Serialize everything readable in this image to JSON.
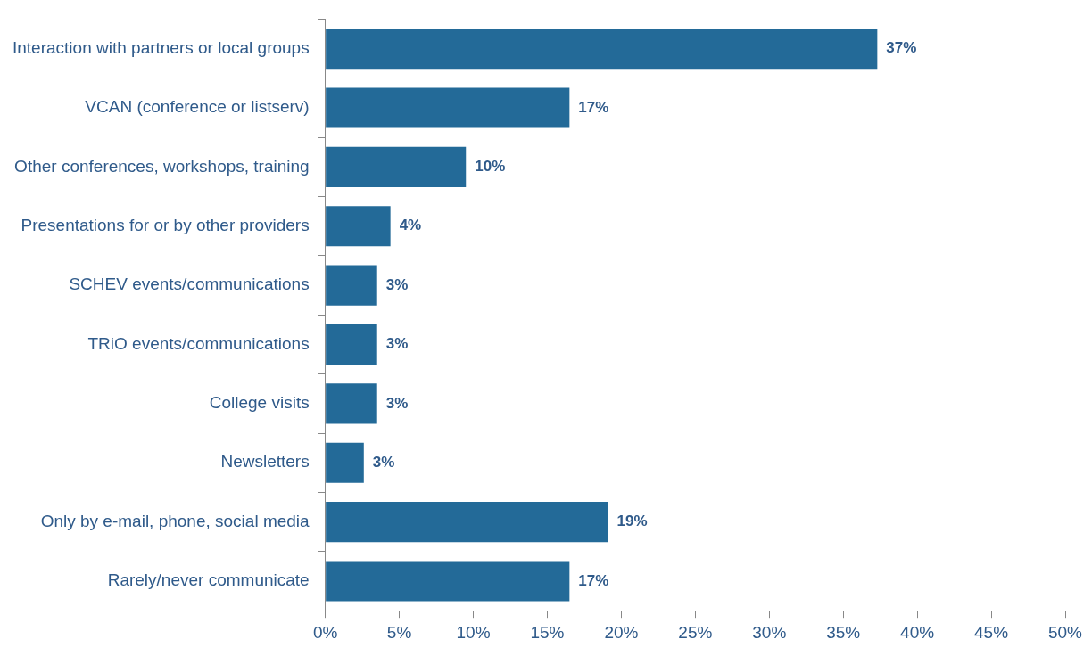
{
  "chart_data": {
    "type": "bar",
    "orientation": "horizontal",
    "categories": [
      "Interaction with partners or local groups",
      "VCAN (conference or listserv)",
      "Other conferences, workshops, training",
      "Presentations for or by other providers",
      "SCHEV events/communications",
      "TRiO events/communications",
      "College visits",
      "Newsletters",
      "Only by e-mail, phone, social media",
      "Rarely/never communicate"
    ],
    "values": [
      37.3,
      16.5,
      9.5,
      4.4,
      3.5,
      3.5,
      3.5,
      2.6,
      19.1,
      16.5
    ],
    "value_labels": [
      "37%",
      "17%",
      "10%",
      "4%",
      "3%",
      "3%",
      "3%",
      "3%",
      "19%",
      "17%"
    ],
    "color": "#236a98",
    "xlim": [
      0,
      50
    ],
    "xticks": [
      {
        "value": 0,
        "label": "0%"
      },
      {
        "value": 5,
        "label": "5%"
      },
      {
        "value": 10,
        "label": "10%"
      },
      {
        "value": 15,
        "label": "15%"
      },
      {
        "value": 20,
        "label": "20%"
      },
      {
        "value": 25,
        "label": "25%"
      },
      {
        "value": 30,
        "label": "30%"
      },
      {
        "value": 35,
        "label": "35%"
      },
      {
        "value": 40,
        "label": "40%"
      },
      {
        "value": 45,
        "label": "45%"
      },
      {
        "value": 50,
        "label": "50%"
      }
    ],
    "grid": false,
    "legend": false
  }
}
